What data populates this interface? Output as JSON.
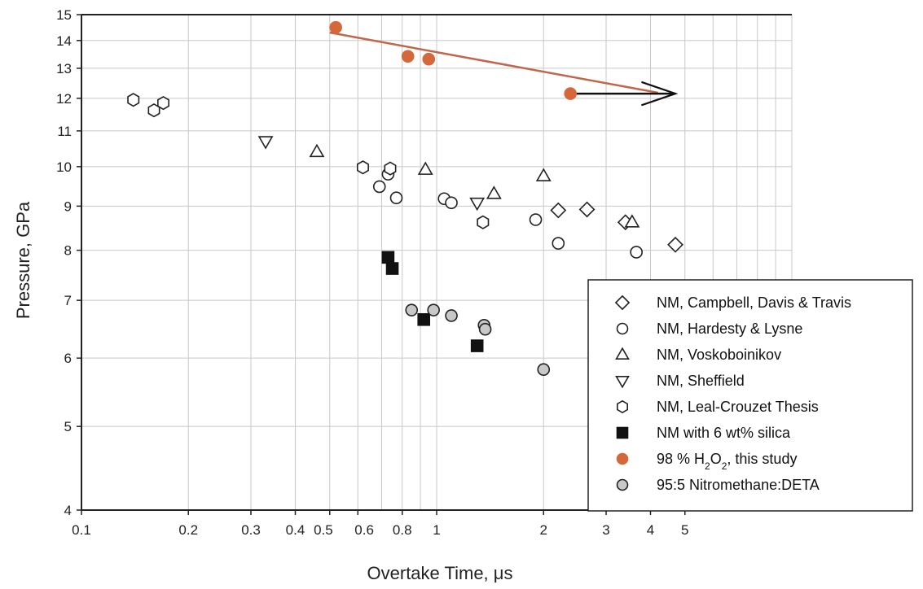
{
  "chart_data": {
    "type": "scatter",
    "title": "",
    "xlabel": "Overtake Time, μs",
    "ylabel": "Pressure, GPa",
    "xscale": "log",
    "yscale": "log",
    "xlim": [
      0.1,
      10
    ],
    "ylim": [
      4,
      15
    ],
    "grid": true,
    "legend_position": "bottom-right",
    "x_ticks": [
      {
        "value": 0.1,
        "label": "0.1"
      },
      {
        "value": 0.2,
        "label": "0.2"
      },
      {
        "value": 0.3,
        "label": "0.3"
      },
      {
        "value": 0.4,
        "label": "0.4"
      },
      {
        "value": 0.5,
        "label": "0.5"
      },
      {
        "value": 0.6,
        "label": "0.6"
      },
      {
        "value": 0.8,
        "label": "0.8"
      },
      {
        "value": 1,
        "label": "1"
      },
      {
        "value": 2,
        "label": "2"
      },
      {
        "value": 3,
        "label": "3"
      },
      {
        "value": 4,
        "label": "4"
      },
      {
        "value": 5,
        "label": "5"
      }
    ],
    "x_gridlines": [
      0.1,
      0.2,
      0.3,
      0.4,
      0.5,
      0.6,
      0.7,
      0.8,
      0.9,
      1,
      2,
      3,
      4,
      5,
      6,
      7,
      8,
      9,
      10
    ],
    "y_ticks": [
      {
        "value": 4,
        "label": "4"
      },
      {
        "value": 5,
        "label": "5"
      },
      {
        "value": 6,
        "label": "6"
      },
      {
        "value": 7,
        "label": "7"
      },
      {
        "value": 8,
        "label": "8"
      },
      {
        "value": 9,
        "label": "9"
      },
      {
        "value": 10,
        "label": "10"
      },
      {
        "value": 11,
        "label": "11"
      },
      {
        "value": 12,
        "label": "12"
      },
      {
        "value": 13,
        "label": "13"
      },
      {
        "value": 14,
        "label": "14"
      },
      {
        "value": 15,
        "label": "15"
      }
    ],
    "series": [
      {
        "name": "NM, Campbell, Davis & Travis",
        "marker": "diamond",
        "fill": "#ffffff",
        "stroke": "#222222",
        "points": [
          [
            2.2,
            8.9
          ],
          [
            2.65,
            8.92
          ],
          [
            3.4,
            8.62
          ],
          [
            4.7,
            8.12
          ]
        ]
      },
      {
        "name": "NM, Hardesty & Lysne",
        "marker": "circle",
        "fill": "#ffffff",
        "stroke": "#222222",
        "points": [
          [
            0.69,
            9.48
          ],
          [
            0.73,
            9.8
          ],
          [
            0.77,
            9.2
          ],
          [
            1.05,
            9.18
          ],
          [
            1.1,
            9.08
          ],
          [
            1.9,
            8.68
          ],
          [
            2.2,
            8.15
          ],
          [
            3.65,
            7.96
          ]
        ]
      },
      {
        "name": "NM, Voskoboinikov",
        "marker": "triangle-up",
        "fill": "#ffffff",
        "stroke": "#222222",
        "points": [
          [
            0.46,
            10.4
          ],
          [
            0.93,
            9.92
          ],
          [
            1.45,
            9.3
          ],
          [
            2.0,
            9.75
          ],
          [
            3.55,
            8.62
          ]
        ]
      },
      {
        "name": "NM, Sheffield",
        "marker": "triangle-down",
        "fill": "#ffffff",
        "stroke": "#222222",
        "points": [
          [
            0.33,
            10.7
          ],
          [
            1.3,
            9.08
          ]
        ]
      },
      {
        "name": "NM, Leal-Crouzet Thesis",
        "marker": "hexagon",
        "fill": "#ffffff",
        "stroke": "#222222",
        "points": [
          [
            0.14,
            11.95
          ],
          [
            0.16,
            11.62
          ],
          [
            0.17,
            11.85
          ],
          [
            0.62,
            9.98
          ],
          [
            0.74,
            9.95
          ],
          [
            1.35,
            8.62
          ]
        ]
      },
      {
        "name": "NM with 6 wt% silica",
        "marker": "square",
        "fill": "#111111",
        "stroke": "#111111",
        "points": [
          [
            0.73,
            7.85
          ],
          [
            0.75,
            7.62
          ],
          [
            0.92,
            6.65
          ],
          [
            1.3,
            6.2
          ]
        ]
      },
      {
        "name_parts": [
          "98 % H",
          "2",
          "O",
          "2",
          ", this study"
        ],
        "marker": "circle",
        "fill": "#d4683a",
        "stroke": "#d4683a",
        "points": [
          [
            0.52,
            14.5
          ],
          [
            0.83,
            13.42
          ],
          [
            0.95,
            13.32
          ],
          [
            2.38,
            12.15
          ]
        ]
      },
      {
        "name": "95:5 Nitromethane:DETA",
        "marker": "circle",
        "fill": "#c8c8c8",
        "stroke": "#222222",
        "points": [
          [
            0.85,
            6.82
          ],
          [
            0.98,
            6.82
          ],
          [
            1.1,
            6.72
          ],
          [
            1.36,
            6.55
          ],
          [
            1.37,
            6.48
          ],
          [
            2.0,
            5.82
          ]
        ]
      }
    ],
    "annotations": [
      {
        "type": "line",
        "color": "#c0664a",
        "from": [
          0.5,
          14.3
        ],
        "to": [
          4.2,
          12.18
        ]
      },
      {
        "type": "arrow",
        "color": "#111111",
        "from": [
          2.38,
          12.15
        ],
        "to": [
          4.7,
          12.15
        ]
      }
    ]
  }
}
